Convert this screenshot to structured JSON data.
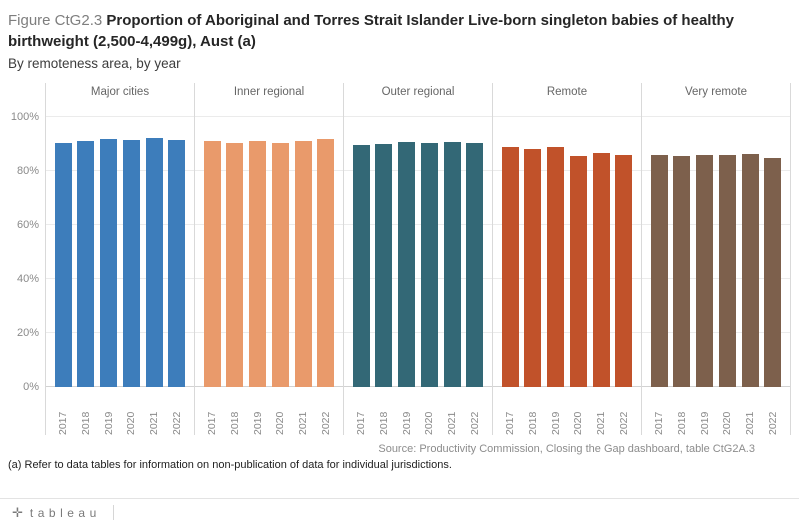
{
  "header": {
    "figure_label": "Figure CtG2.3",
    "title": "Proportion of Aboriginal and Torres Strait Islander Live-born singleton babies of healthy birthweight (2,500-4,499g), Aust (a)",
    "subtitle": "By remoteness area, by year"
  },
  "chart_data": {
    "type": "bar",
    "title": "Proportion of Aboriginal and Torres Strait Islander Live-born singleton babies of healthy birthweight (2,500-4,499g), Aust",
    "xlabel": "",
    "ylabel": "",
    "ylim": [
      0,
      100
    ],
    "grid": true,
    "legend": "none",
    "categories": [
      "2017",
      "2018",
      "2019",
      "2020",
      "2021",
      "2022"
    ],
    "ytick_values": [
      0,
      20,
      40,
      60,
      80,
      100
    ],
    "ytick_labels": [
      "0%",
      "20%",
      "40%",
      "60%",
      "80%",
      "100%"
    ],
    "series": [
      {
        "name": "Major cities",
        "color": "#3d7dbb",
        "values": [
          90.5,
          91.0,
          91.9,
          91.4,
          92.3,
          91.4
        ]
      },
      {
        "name": "Inner regional",
        "color": "#e99a6b",
        "values": [
          91.0,
          90.5,
          91.1,
          90.5,
          91.0,
          92.0
        ]
      },
      {
        "name": "Outer regional",
        "color": "#336876",
        "values": [
          89.6,
          90.0,
          90.9,
          90.5,
          90.9,
          90.4
        ]
      },
      {
        "name": "Remote",
        "color": "#c1522a",
        "values": [
          88.9,
          88.3,
          88.8,
          85.5,
          86.6,
          86.1
        ]
      },
      {
        "name": "Very remote",
        "color": "#7d604c",
        "values": [
          86.1,
          85.6,
          86.1,
          86.0,
          86.3,
          85.0
        ]
      }
    ]
  },
  "footer": {
    "source": "Source: Productivity Commission, Closing the Gap dashboard, table CtG2A.3",
    "footnote": "(a) Refer to data tables for information on non-publication of data for individual jurisdictions."
  },
  "toolbar": {
    "logo_cross": "✛",
    "logo_text": "tableau"
  }
}
